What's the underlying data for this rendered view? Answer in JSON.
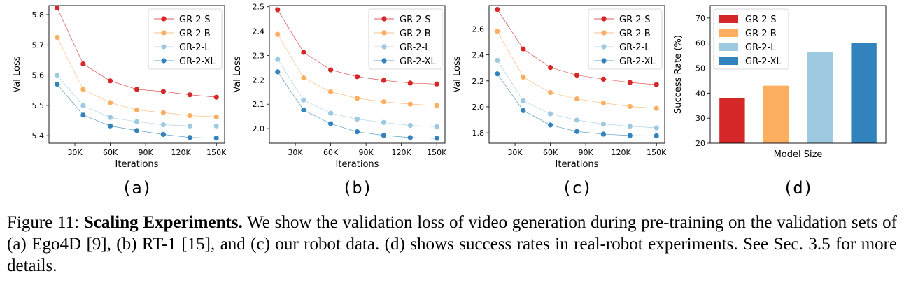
{
  "chart_data": [
    {
      "type": "line",
      "panel_label": "(a)",
      "xlabel": "Iterations",
      "ylabel": "Val Loss",
      "x": [
        15000,
        37000,
        60000,
        82500,
        105000,
        127500,
        150000
      ],
      "xticks": [
        "30K",
        "60K",
        "90K",
        "120K",
        "150K"
      ],
      "xtick_values": [
        30000,
        60000,
        90000,
        120000,
        150000
      ],
      "yticks": [
        "5.4",
        "5.5",
        "5.6",
        "5.7",
        "5.8"
      ],
      "ytick_values": [
        5.4,
        5.5,
        5.6,
        5.7,
        5.8
      ],
      "xlim": [
        8000,
        157000
      ],
      "ylim": [
        5.375,
        5.83
      ],
      "legend": "top-right",
      "series": [
        {
          "name": "GR-2-S",
          "color": "#d62728",
          "values": [
            5.822,
            5.637,
            5.581,
            5.553,
            5.546,
            5.535,
            5.527
          ]
        },
        {
          "name": "GR-2-B",
          "color": "#fdae61",
          "values": [
            5.725,
            5.553,
            5.509,
            5.485,
            5.476,
            5.466,
            5.462
          ]
        },
        {
          "name": "GR-2-L",
          "color": "#9ecae1",
          "values": [
            5.6,
            5.499,
            5.46,
            5.446,
            5.436,
            5.432,
            5.432
          ]
        },
        {
          "name": "GR-2-XL",
          "color": "#3182bd",
          "values": [
            5.57,
            5.468,
            5.432,
            5.417,
            5.404,
            5.394,
            5.392
          ]
        }
      ]
    },
    {
      "type": "line",
      "panel_label": "(b)",
      "xlabel": "Iterations",
      "ylabel": "Val Loss",
      "x": [
        15000,
        37000,
        60000,
        82500,
        105000,
        127500,
        150000
      ],
      "xticks": [
        "30K",
        "60K",
        "90K",
        "120K",
        "150K"
      ],
      "xtick_values": [
        30000,
        60000,
        90000,
        120000,
        150000
      ],
      "yticks": [
        "2.0",
        "2.1",
        "2.2",
        "2.3",
        "2.4",
        "2.5"
      ],
      "ytick_values": [
        2.0,
        2.1,
        2.2,
        2.3,
        2.4,
        2.5
      ],
      "xlim": [
        8000,
        157000
      ],
      "ylim": [
        1.94,
        2.505
      ],
      "legend": "top-right",
      "series": [
        {
          "name": "GR-2-S",
          "color": "#d62728",
          "values": [
            2.488,
            2.313,
            2.241,
            2.213,
            2.198,
            2.187,
            2.183
          ]
        },
        {
          "name": "GR-2-B",
          "color": "#fdae61",
          "values": [
            2.387,
            2.208,
            2.151,
            2.124,
            2.11,
            2.1,
            2.095
          ]
        },
        {
          "name": "GR-2-L",
          "color": "#9ecae1",
          "values": [
            2.284,
            2.117,
            2.063,
            2.039,
            2.025,
            2.013,
            2.008
          ]
        },
        {
          "name": "GR-2-XL",
          "color": "#3182bd",
          "values": [
            2.233,
            2.076,
            2.02,
            1.987,
            1.972,
            1.963,
            1.96
          ]
        }
      ]
    },
    {
      "type": "line",
      "panel_label": "(c)",
      "xlabel": "Iterations",
      "ylabel": "Val Loss",
      "x": [
        15000,
        37000,
        60000,
        82500,
        105000,
        127500,
        150000
      ],
      "xticks": [
        "30K",
        "60K",
        "90K",
        "120K",
        "150K"
      ],
      "xtick_values": [
        30000,
        60000,
        90000,
        120000,
        150000
      ],
      "yticks": [
        "1.8",
        "2.0",
        "2.2",
        "2.4",
        "2.6"
      ],
      "ytick_values": [
        1.8,
        2.0,
        2.2,
        2.4,
        2.6
      ],
      "xlim": [
        8000,
        157000
      ],
      "ylim": [
        1.72,
        2.78
      ],
      "legend": "top-right",
      "series": [
        {
          "name": "GR-2-S",
          "color": "#d62728",
          "values": [
            2.75,
            2.446,
            2.303,
            2.244,
            2.213,
            2.188,
            2.171
          ]
        },
        {
          "name": "GR-2-B",
          "color": "#fdae61",
          "values": [
            2.582,
            2.229,
            2.11,
            2.061,
            2.029,
            2.003,
            1.988
          ]
        },
        {
          "name": "GR-2-L",
          "color": "#9ecae1",
          "values": [
            2.358,
            2.046,
            1.946,
            1.898,
            1.867,
            1.851,
            1.838
          ]
        },
        {
          "name": "GR-2-XL",
          "color": "#3182bd",
          "values": [
            2.254,
            1.971,
            1.86,
            1.81,
            1.79,
            1.779,
            1.777
          ]
        }
      ]
    },
    {
      "type": "bar",
      "panel_label": "(d)",
      "xlabel": "Model Size",
      "ylabel": "Success Rate (%)",
      "categories": [
        "GR-2-S",
        "GR-2-B",
        "GR-2-L",
        "GR-2-XL"
      ],
      "values": [
        38.0,
        43.0,
        56.5,
        60.0
      ],
      "colors": [
        "#d62728",
        "#fdae61",
        "#9ecae1",
        "#3182bd"
      ],
      "yticks": [
        "20",
        "30",
        "40",
        "50",
        "60",
        "70"
      ],
      "ytick_values": [
        20,
        30,
        40,
        50,
        60,
        70
      ],
      "ylim": [
        20,
        75
      ],
      "legend": "top-left"
    }
  ],
  "caption": {
    "prefix": "Figure 11: ",
    "bold": "Scaling Experiments.",
    "text": " We show the validation loss of video generation during pre-training on the validation sets of (a) Ego4D [9], (b) RT-1 [15], and (c) our robot data. (d) shows success rates in real-robot experiments. See Sec. 3.5 for more details."
  }
}
